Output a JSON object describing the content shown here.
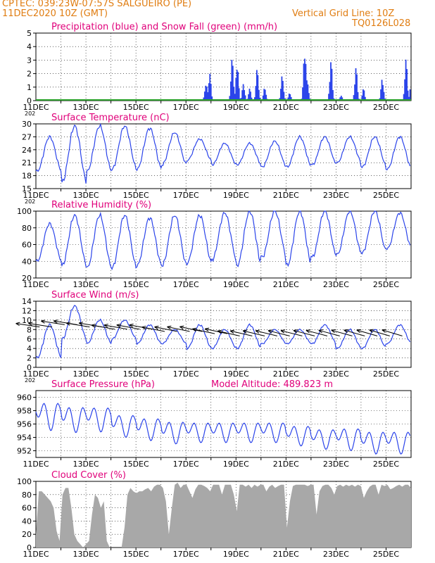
{
  "header": {
    "line1": "CPTEC:  039:23W-07:57S  SALGUEIRO (PE)",
    "line2": "11DEC2020 10Z (GMT)",
    "grid_note": "Vertical Grid Line: 10Z",
    "code": "TQ0126L028"
  },
  "colors": {
    "header": "#e07d12",
    "title": "#e0007a",
    "line": "#2b44ea",
    "snow": "#2aa02a",
    "cloud": "#a8a8a8"
  },
  "chart_data": [
    {
      "type": "bar",
      "title": "Precipitation (blue) and Snow Fall (green) (mm/h)",
      "ylim": [
        0,
        5
      ],
      "yticks": [
        0,
        1,
        2,
        3,
        4,
        5
      ],
      "x_labels": [
        "11DEC",
        "13DEC",
        "15DEC",
        "17DEC",
        "19DEC",
        "21DEC",
        "23DEC",
        "25DEC"
      ],
      "x_extra_label": "202",
      "series": [
        {
          "name": "Precipitation",
          "color": "#2b44ea",
          "peaks": [
            {
              "day": 17.8,
              "v": 1.3
            },
            {
              "day": 17.95,
              "v": 2.1
            },
            {
              "day": 18.85,
              "v": 3.2
            },
            {
              "day": 19.05,
              "v": 2.9
            },
            {
              "day": 19.3,
              "v": 1.3
            },
            {
              "day": 19.55,
              "v": 0.9
            },
            {
              "day": 19.85,
              "v": 2.4
            },
            {
              "day": 20.15,
              "v": 1.0
            },
            {
              "day": 20.85,
              "v": 1.9
            },
            {
              "day": 21.15,
              "v": 0.6
            },
            {
              "day": 21.75,
              "v": 4.1
            },
            {
              "day": 21.85,
              "v": 1.6
            },
            {
              "day": 22.8,
              "v": 3.0
            },
            {
              "day": 23.2,
              "v": 0.4
            },
            {
              "day": 23.8,
              "v": 2.5
            },
            {
              "day": 24.1,
              "v": 0.9
            },
            {
              "day": 24.85,
              "v": 1.7
            },
            {
              "day": 25.8,
              "v": 3.1
            },
            {
              "day": 26.0,
              "v": 1.2
            }
          ]
        },
        {
          "name": "Snow Fall",
          "color": "#2aa02a",
          "values": 0
        }
      ]
    },
    {
      "type": "line",
      "title": "Surface Temperature (nC)",
      "ylim": [
        15,
        30
      ],
      "yticks": [
        15,
        18,
        21,
        24,
        27,
        30
      ],
      "x_labels": [
        "11DEC",
        "13DEC",
        "15DEC",
        "17DEC",
        "19DEC",
        "21DEC",
        "23DEC",
        "25DEC"
      ],
      "x_extra_label": "202",
      "daily_min": [
        19,
        16.5,
        19,
        19.5,
        19.5,
        20.5,
        21.5,
        20.5,
        20.5,
        20,
        20,
        20.5,
        21,
        20,
        19.5,
        20
      ],
      "daily_max": [
        27,
        29.5,
        29.5,
        29.5,
        29,
        28,
        26.5,
        25.5,
        25.5,
        26,
        27,
        27,
        27,
        27,
        27,
        27
      ]
    },
    {
      "type": "line",
      "title": "Relative Humidity (%)",
      "ylim": [
        20,
        100
      ],
      "yticks": [
        20,
        40,
        60,
        80,
        100
      ],
      "x_labels": [
        "11DEC",
        "13DEC",
        "15DEC",
        "17DEC",
        "19DEC",
        "21DEC",
        "23DEC",
        "25DEC"
      ],
      "x_extra_label": "",
      "daily_min": [
        40,
        35,
        32,
        32,
        35,
        35,
        38,
        42,
        35,
        45,
        35,
        45,
        48,
        50,
        55,
        50
      ],
      "daily_max": [
        85,
        95,
        95,
        95,
        92,
        95,
        95,
        98,
        100,
        100,
        100,
        100,
        100,
        100,
        98,
        98
      ]
    },
    {
      "type": "line",
      "title": "Surface Wind (m/s)",
      "ylim": [
        0,
        14
      ],
      "yticks": [
        0,
        2,
        4,
        6,
        8,
        10,
        12,
        14
      ],
      "x_labels": [
        "11DEC",
        "13DEC",
        "15DEC",
        "17DEC",
        "19DEC",
        "21DEC",
        "23DEC",
        "25DEC"
      ],
      "x_extra_label": "202",
      "daily_min": [
        2,
        6,
        5,
        6,
        5,
        5,
        4,
        4,
        4,
        5,
        5,
        5,
        4,
        4,
        5,
        5
      ],
      "daily_max": [
        9,
        13,
        10,
        10,
        9,
        8,
        9,
        8,
        9,
        8,
        8,
        9,
        8,
        8,
        9,
        9
      ],
      "vector_speed": [
        9,
        9.5,
        9,
        8.5,
        8.5,
        8,
        8,
        7.5,
        7,
        7,
        7,
        7,
        7,
        7,
        7,
        7
      ]
    },
    {
      "type": "line",
      "title": "Surface Pressure (hPa)",
      "annotation": "Model Altitude: 489.823 m",
      "ylim": [
        951,
        961
      ],
      "yticks": [
        952,
        954,
        956,
        958,
        960
      ],
      "x_labels": [
        "11DEC",
        "13DEC",
        "15DEC",
        "17DEC",
        "19DEC",
        "21DEC",
        "23DEC",
        "25DEC"
      ],
      "x_extra_label": "",
      "daily_mean": [
        957.5,
        957,
        957,
        956,
        955.5,
        955,
        955,
        955,
        955,
        955,
        954.5,
        954,
        954,
        953.5,
        953.5,
        953.5
      ],
      "daily_amp": [
        2.5,
        2.3,
        2.2,
        2.0,
        2.0,
        2.0,
        1.8,
        1.8,
        1.8,
        1.8,
        1.8,
        1.8,
        2.0,
        2.0,
        2.0,
        2.0
      ]
    },
    {
      "type": "area",
      "title": "Cloud Cover (%)",
      "ylim": [
        0,
        100
      ],
      "yticks": [
        0,
        20,
        40,
        60,
        80,
        100
      ],
      "x_labels": [
        "11DEC",
        "13DEC",
        "15DEC",
        "17DEC",
        "19DEC",
        "21DEC",
        "23DEC",
        "25DEC"
      ],
      "x_extra_label": "",
      "series": [
        {
          "name": "Cloud Cover",
          "color": "#a8a8a8",
          "values": [
            20,
            85,
            85,
            80,
            75,
            70,
            60,
            25,
            10,
            80,
            90,
            90,
            60,
            20,
            10,
            5,
            0,
            5,
            10,
            50,
            80,
            75,
            60,
            70,
            10,
            0,
            0,
            0,
            0,
            0,
            30,
            80,
            90,
            85,
            82,
            85,
            85,
            88,
            90,
            85,
            92,
            95,
            95,
            90,
            70,
            20,
            60,
            95,
            98,
            90,
            95,
            95,
            85,
            75,
            88,
            95,
            95,
            93,
            90,
            85,
            95,
            95,
            95,
            80,
            95,
            95,
            95,
            80,
            55,
            95,
            95,
            92,
            95,
            90,
            95,
            92,
            95,
            95,
            85,
            92,
            95,
            90,
            93,
            95,
            95,
            30,
            70,
            93,
            95,
            95,
            95,
            95,
            93,
            95,
            95,
            50,
            85,
            93,
            95,
            95,
            90,
            80,
            93,
            95,
            92,
            95,
            93,
            95,
            92,
            95,
            93,
            75,
            85,
            92,
            95,
            95,
            80,
            95,
            93,
            95,
            88,
            90,
            93,
            95,
            92,
            95,
            95,
            90
          ]
        }
      ]
    }
  ]
}
